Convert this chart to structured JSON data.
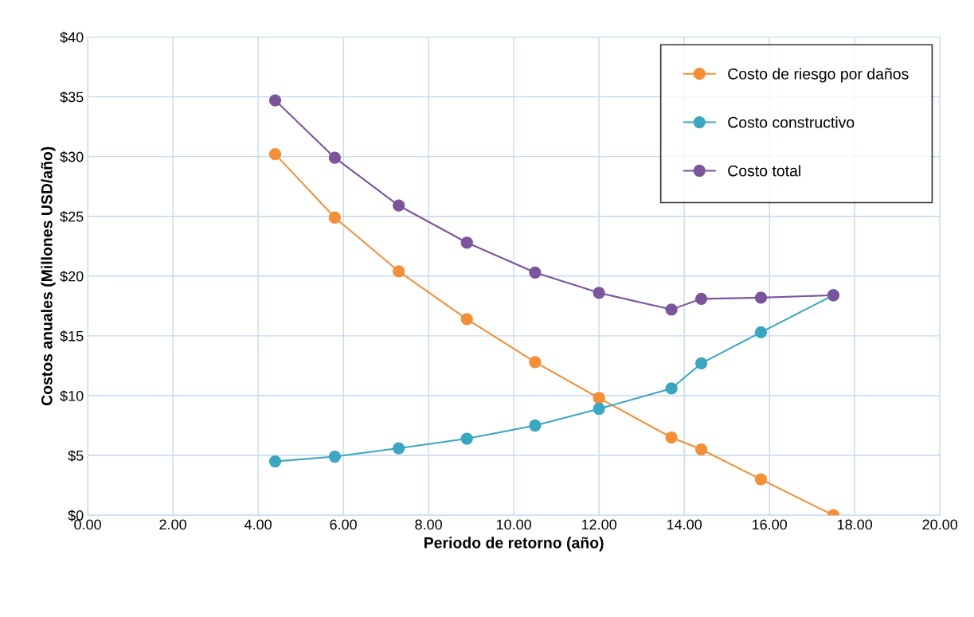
{
  "chart_data": {
    "type": "line",
    "xlabel": "Periodo de retorno (año)",
    "ylabel": "Costos anuales (Millones USD/año)",
    "x": [
      4.4,
      5.8,
      7.3,
      8.9,
      10.5,
      12.0,
      13.7,
      14.4,
      15.8,
      17.5
    ],
    "series": [
      {
        "name": "Costo de riesgo por daños",
        "color": "#f58f35",
        "values": [
          30.2,
          24.9,
          20.4,
          16.4,
          12.8,
          9.8,
          6.5,
          5.5,
          3.0,
          0.0
        ]
      },
      {
        "name": "Costo constructivo",
        "color": "#3aa6c2",
        "values": [
          4.5,
          4.9,
          5.6,
          6.4,
          7.5,
          8.9,
          10.6,
          12.7,
          15.3,
          18.4
        ]
      },
      {
        "name": "Costo total",
        "color": "#7a559c",
        "values": [
          34.7,
          29.9,
          25.9,
          22.8,
          20.3,
          18.6,
          17.2,
          18.1,
          18.2,
          18.4
        ]
      }
    ],
    "xlim": [
      0,
      20
    ],
    "xticks": [
      {
        "value": 0,
        "label": "0.00"
      },
      {
        "value": 2,
        "label": "2.00"
      },
      {
        "value": 4,
        "label": "4.00"
      },
      {
        "value": 6,
        "label": "6.00"
      },
      {
        "value": 8,
        "label": "8.00"
      },
      {
        "value": 10,
        "label": "10.00"
      },
      {
        "value": 12,
        "label": "12.00"
      },
      {
        "value": 14,
        "label": "14.00"
      },
      {
        "value": 16,
        "label": "16.00"
      },
      {
        "value": 18,
        "label": "18.00"
      },
      {
        "value": 20,
        "label": "20.00"
      }
    ],
    "ylim": [
      0,
      40
    ],
    "yticks": [
      {
        "value": 0,
        "label": "$0"
      },
      {
        "value": 5,
        "label": "$5"
      },
      {
        "value": 10,
        "label": "$10"
      },
      {
        "value": 15,
        "label": "$15"
      },
      {
        "value": 20,
        "label": "$20"
      },
      {
        "value": 25,
        "label": "$25"
      },
      {
        "value": 30,
        "label": "$30"
      },
      {
        "value": 35,
        "label": "$35"
      },
      {
        "value": 40,
        "label": "$40"
      }
    ],
    "grid": true,
    "legend": "top right",
    "marker": "circle",
    "line_style": "solid"
  }
}
